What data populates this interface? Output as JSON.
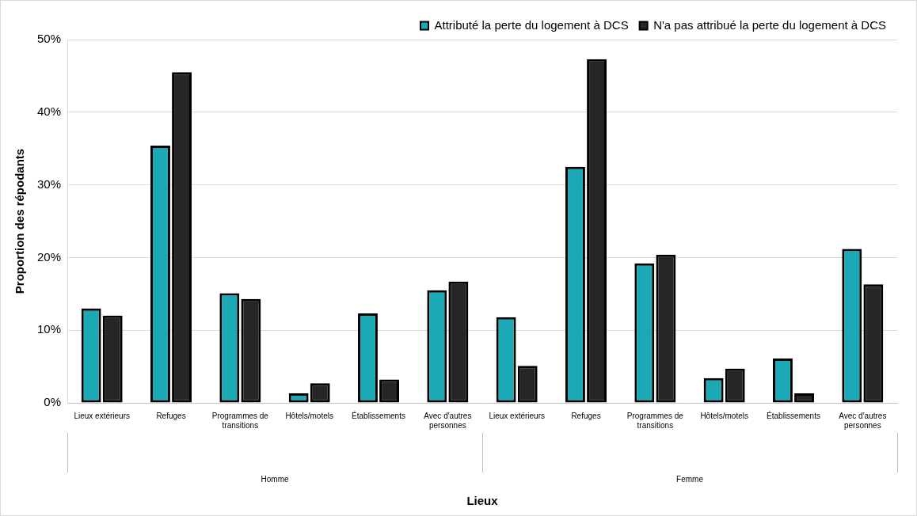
{
  "chart_data": {
    "type": "bar",
    "x_label": "Lieux",
    "y_label": "Proportion des répodants",
    "groups": [
      "Homme",
      "Femme"
    ],
    "categories": [
      "Lieux extérieurs",
      "Refuges",
      "Programmes de transitions",
      "Hôtels/motels",
      "Établissements",
      "Avec d'autres personnes",
      "Lieux extérieurs",
      "Refuges",
      "Programmes de transitions",
      "Hôtels/motels",
      "Établissements",
      "Avec d'autres personnes"
    ],
    "series": [
      {
        "name": "Attributé la perte du logement à DCS",
        "color": "#1ba9b5",
        "values": [
          13.0,
          35.4,
          15.1,
          1.3,
          12.3,
          15.5,
          11.8,
          32.5,
          19.2,
          3.4,
          6.1,
          21.2
        ]
      },
      {
        "name": "N'a pas attribué la perte du logement à DCS",
        "color": "#262626",
        "values": [
          12.0,
          45.5,
          14.3,
          2.7,
          3.2,
          16.7,
          5.1,
          47.3,
          20.4,
          4.7,
          1.3,
          16.3
        ]
      }
    ],
    "ylim": [
      0,
      50
    ],
    "yticks": [
      {
        "value": 0,
        "label": "0%"
      },
      {
        "value": 10,
        "label": "10%"
      },
      {
        "value": 20,
        "label": "20%"
      },
      {
        "value": 30,
        "label": "30%"
      },
      {
        "value": 40,
        "label": "40%"
      },
      {
        "value": 50,
        "label": "50%"
      }
    ],
    "grid": true,
    "legend": "top-right"
  }
}
